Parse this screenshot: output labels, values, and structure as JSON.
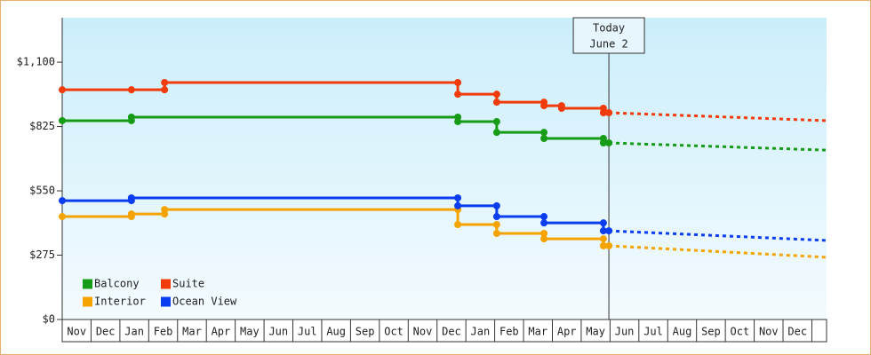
{
  "chart_data": {
    "type": "line",
    "ylim": [
      0,
      1290
    ],
    "yticks": [
      {
        "value": 0,
        "label": "$0"
      },
      {
        "value": 275,
        "label": "$275"
      },
      {
        "value": 550,
        "label": "$550"
      },
      {
        "value": 825,
        "label": "$825"
      },
      {
        "value": 1100,
        "label": "$1,100"
      }
    ],
    "xlim": [
      0,
      26.51
    ],
    "xticks": [
      {
        "value": 0.5,
        "label": "Nov"
      },
      {
        "value": 1.5,
        "label": "Dec"
      },
      {
        "value": 2.5,
        "label": "Jan"
      },
      {
        "value": 3.5,
        "label": "Feb"
      },
      {
        "value": 4.5,
        "label": "Mar"
      },
      {
        "value": 5.5,
        "label": "Apr"
      },
      {
        "value": 6.5,
        "label": "May"
      },
      {
        "value": 7.5,
        "label": "Jun"
      },
      {
        "value": 8.5,
        "label": "Jul"
      },
      {
        "value": 9.5,
        "label": "Aug"
      },
      {
        "value": 10.5,
        "label": "Sep"
      },
      {
        "value": 11.5,
        "label": "Oct"
      },
      {
        "value": 12.5,
        "label": "Nov"
      },
      {
        "value": 13.5,
        "label": "Dec"
      },
      {
        "value": 14.5,
        "label": "Jan"
      },
      {
        "value": 15.5,
        "label": "Feb"
      },
      {
        "value": 16.5,
        "label": "Mar"
      },
      {
        "value": 17.5,
        "label": "Apr"
      },
      {
        "value": 18.5,
        "label": "May"
      },
      {
        "value": 19.5,
        "label": "Jun"
      },
      {
        "value": 20.5,
        "label": "Jul"
      },
      {
        "value": 21.5,
        "label": "Aug"
      },
      {
        "value": 22.5,
        "label": "Sep"
      },
      {
        "value": 23.5,
        "label": "Oct"
      },
      {
        "value": 24.5,
        "label": "Nov"
      },
      {
        "value": 25.5,
        "label": "Dec"
      }
    ],
    "annotation": {
      "x": 18.96,
      "lines": [
        "Today",
        "June 2"
      ]
    },
    "series": [
      {
        "name": "Balcony",
        "color": "#169c16",
        "x": [
          0,
          2.4,
          2.4,
          13.72,
          13.72,
          15.07,
          15.07,
          16.71,
          16.71,
          18.77,
          18.77,
          18.96
        ],
        "values": [
          850,
          850,
          865,
          865,
          846,
          846,
          800,
          800,
          774,
          774,
          755,
          755
        ],
        "forecast": {
          "x": [
            18.96,
            26.51
          ],
          "values": [
            755,
            724
          ]
        }
      },
      {
        "name": "Suite",
        "color": "#f03c0a",
        "x": [
          0,
          2.4,
          3.55,
          3.55,
          13.72,
          13.72,
          15.07,
          15.07,
          16.71,
          16.71,
          17.32,
          17.32,
          18.77,
          18.77,
          18.96
        ],
        "values": [
          982,
          982,
          982,
          1013,
          1013,
          963,
          963,
          929,
          929,
          914,
          914,
          903,
          903,
          884,
          884
        ],
        "forecast": {
          "x": [
            18.96,
            26.51
          ],
          "values": [
            884,
            850
          ]
        }
      },
      {
        "name": "Interior",
        "color": "#f5a300",
        "x": [
          0,
          2.4,
          2.4,
          3.55,
          3.55,
          13.72,
          13.72,
          15.07,
          15.07,
          16.71,
          16.71,
          18.77,
          18.77,
          18.96
        ],
        "values": [
          440,
          440,
          451,
          451,
          470,
          470,
          406,
          406,
          368,
          368,
          345,
          345,
          315,
          315
        ],
        "forecast": {
          "x": [
            18.96,
            26.51
          ],
          "values": [
            315,
            266
          ]
        }
      },
      {
        "name": "Ocean View",
        "color": "#0a3cf0",
        "x": [
          0,
          2.4,
          2.4,
          13.72,
          13.72,
          15.07,
          15.07,
          16.71,
          16.71,
          18.77,
          18.77,
          18.96
        ],
        "values": [
          508,
          508,
          520,
          520,
          486,
          486,
          440,
          440,
          413,
          413,
          379,
          379
        ],
        "forecast": {
          "x": [
            18.96,
            26.51
          ],
          "values": [
            379,
            338
          ]
        }
      }
    ]
  }
}
